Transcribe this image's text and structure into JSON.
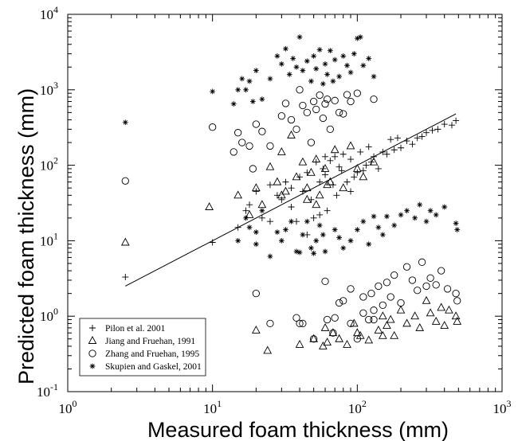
{
  "chart_data": {
    "type": "scatter",
    "title": "",
    "xlabel": "Measured foam thickness (mm)",
    "ylabel": "Predicted foam thickness (mm)",
    "xscale": "log",
    "yscale": "log",
    "xlim": [
      1,
      1000
    ],
    "ylim": [
      0.1,
      10000
    ],
    "x_ticks": [
      {
        "base": "10",
        "exp": "0"
      },
      {
        "base": "10",
        "exp": "1"
      },
      {
        "base": "10",
        "exp": "2"
      },
      {
        "base": "10",
        "exp": "3"
      }
    ],
    "y_ticks": [
      {
        "base": "10",
        "exp": "-1"
      },
      {
        "base": "10",
        "exp": "0"
      },
      {
        "base": "10",
        "exp": "1"
      },
      {
        "base": "10",
        "exp": "2"
      },
      {
        "base": "10",
        "exp": "3"
      },
      {
        "base": "10",
        "exp": "4"
      }
    ],
    "grid": false,
    "legend_position": "bottom-left",
    "fit_line": {
      "x": [
        2.5,
        480
      ],
      "y": [
        2.5,
        480
      ]
    },
    "series": [
      {
        "name": "Pilon et al. 2001",
        "marker": "plus",
        "points": [
          [
            2.5,
            3.3
          ],
          [
            10,
            9.5
          ],
          [
            15,
            15
          ],
          [
            17,
            25
          ],
          [
            18,
            30
          ],
          [
            20,
            45
          ],
          [
            22,
            20
          ],
          [
            25,
            55
          ],
          [
            28,
            40
          ],
          [
            30,
            35
          ],
          [
            32,
            60
          ],
          [
            35,
            50
          ],
          [
            38,
            18
          ],
          [
            40,
            70
          ],
          [
            42,
            45
          ],
          [
            45,
            80
          ],
          [
            48,
            35
          ],
          [
            50,
            20
          ],
          [
            52,
            110
          ],
          [
            55,
            60
          ],
          [
            58,
            90
          ],
          [
            60,
            75
          ],
          [
            62,
            25
          ],
          [
            65,
            115
          ],
          [
            68,
            55
          ],
          [
            70,
            130
          ],
          [
            72,
            40
          ],
          [
            75,
            95
          ],
          [
            78,
            85
          ],
          [
            80,
            140
          ],
          [
            85,
            60
          ],
          [
            90,
            120
          ],
          [
            95,
            70
          ],
          [
            100,
            80
          ],
          [
            105,
            150
          ],
          [
            110,
            85
          ],
          [
            115,
            100
          ],
          [
            120,
            175
          ],
          [
            125,
            110
          ],
          [
            130,
            130
          ],
          [
            140,
            90
          ],
          [
            150,
            150
          ],
          [
            160,
            140
          ],
          [
            170,
            220
          ],
          [
            180,
            160
          ],
          [
            190,
            230
          ],
          [
            200,
            170
          ],
          [
            220,
            210
          ],
          [
            240,
            190
          ],
          [
            260,
            230
          ],
          [
            280,
            240
          ],
          [
            300,
            270
          ],
          [
            330,
            290
          ],
          [
            360,
            300
          ],
          [
            400,
            350
          ],
          [
            450,
            340
          ],
          [
            480,
            390
          ],
          [
            25,
            18
          ],
          [
            45,
            12
          ],
          [
            35,
            28
          ],
          [
            55,
            22
          ],
          [
            60,
            130
          ],
          [
            90,
            45
          ]
        ]
      },
      {
        "name": "Jiang and Fruehan, 1991",
        "marker": "triangle",
        "points": [
          [
            2.5,
            9.5
          ],
          [
            9.5,
            28
          ],
          [
            15,
            40
          ],
          [
            18,
            22
          ],
          [
            20,
            50
          ],
          [
            20,
            0.65
          ],
          [
            22,
            30
          ],
          [
            24,
            0.35
          ],
          [
            25,
            95
          ],
          [
            28,
            60
          ],
          [
            30,
            150
          ],
          [
            32,
            45
          ],
          [
            35,
            250
          ],
          [
            38,
            70
          ],
          [
            40,
            0.42
          ],
          [
            42,
            110
          ],
          [
            45,
            35
          ],
          [
            48,
            80
          ],
          [
            50,
            0.5
          ],
          [
            52,
            120
          ],
          [
            55,
            40
          ],
          [
            58,
            0.4
          ],
          [
            60,
            90
          ],
          [
            62,
            0.45
          ],
          [
            65,
            60
          ],
          [
            68,
            0.6
          ],
          [
            70,
            160
          ],
          [
            75,
            0.5
          ],
          [
            80,
            50
          ],
          [
            85,
            0.42
          ],
          [
            90,
            180
          ],
          [
            95,
            0.8
          ],
          [
            100,
            90
          ],
          [
            105,
            0.55
          ],
          [
            110,
            70
          ],
          [
            120,
            0.48
          ],
          [
            130,
            110
          ],
          [
            140,
            0.65
          ],
          [
            150,
            1.0
          ],
          [
            160,
            0.75
          ],
          [
            170,
            0.9
          ],
          [
            180,
            0.55
          ],
          [
            200,
            1.2
          ],
          [
            220,
            0.8
          ],
          [
            250,
            1.0
          ],
          [
            270,
            0.7
          ],
          [
            300,
            1.6
          ],
          [
            320,
            1.1
          ],
          [
            350,
            0.85
          ],
          [
            380,
            1.3
          ],
          [
            400,
            0.75
          ],
          [
            430,
            1.2
          ],
          [
            480,
            1.0
          ],
          [
            490,
            0.85
          ],
          [
            30,
            40
          ],
          [
            45,
            50
          ],
          [
            62,
            55
          ],
          [
            52,
            30
          ],
          [
            60,
            0.7
          ],
          [
            100,
            0.6
          ],
          [
            150,
            0.55
          ]
        ]
      },
      {
        "name": "Zhang and Fruehan, 1995",
        "marker": "circle",
        "points": [
          [
            2.5,
            62
          ],
          [
            10,
            320
          ],
          [
            14,
            150
          ],
          [
            15,
            270
          ],
          [
            16,
            200
          ],
          [
            18,
            180
          ],
          [
            19,
            90
          ],
          [
            20,
            2.0
          ],
          [
            20,
            350
          ],
          [
            22,
            280
          ],
          [
            25,
            180
          ],
          [
            30,
            450
          ],
          [
            32,
            660
          ],
          [
            35,
            400
          ],
          [
            38,
            300
          ],
          [
            40,
            1000
          ],
          [
            42,
            620
          ],
          [
            45,
            500
          ],
          [
            48,
            200
          ],
          [
            50,
            700
          ],
          [
            52,
            550
          ],
          [
            55,
            850
          ],
          [
            58,
            420
          ],
          [
            60,
            650
          ],
          [
            62,
            750
          ],
          [
            65,
            300
          ],
          [
            70,
            720
          ],
          [
            75,
            500
          ],
          [
            80,
            480
          ],
          [
            85,
            860
          ],
          [
            90,
            700
          ],
          [
            100,
            900
          ],
          [
            130,
            750
          ],
          [
            25,
            0.8
          ],
          [
            38,
            0.95
          ],
          [
            40,
            0.8
          ],
          [
            42,
            0.8
          ],
          [
            50,
            0.5
          ],
          [
            62,
            0.9
          ],
          [
            68,
            0.6
          ],
          [
            70,
            0.95
          ],
          [
            80,
            1.6
          ],
          [
            90,
            0.8
          ],
          [
            100,
            0.5
          ],
          [
            110,
            1.1
          ],
          [
            120,
            0.9
          ],
          [
            130,
            1.2
          ],
          [
            140,
            2.5
          ],
          [
            150,
            1.4
          ],
          [
            160,
            2.8
          ],
          [
            170,
            1.8
          ],
          [
            180,
            3.5
          ],
          [
            200,
            1.5
          ],
          [
            220,
            4.5
          ],
          [
            240,
            3.0
          ],
          [
            260,
            2.2
          ],
          [
            280,
            5.2
          ],
          [
            300,
            2.5
          ],
          [
            320,
            3.2
          ],
          [
            350,
            2.6
          ],
          [
            380,
            4.0
          ],
          [
            420,
            2.3
          ],
          [
            480,
            2.0
          ],
          [
            490,
            1.6
          ],
          [
            60,
            2.9
          ],
          [
            75,
            1.5
          ],
          [
            90,
            2.3
          ],
          [
            110,
            1.8
          ],
          [
            125,
            2.0
          ],
          [
            130,
            0.9
          ]
        ]
      },
      {
        "name": "Skupien and Gaskel, 2001",
        "marker": "asterisk",
        "points": [
          [
            2.5,
            370
          ],
          [
            10,
            950
          ],
          [
            14,
            650
          ],
          [
            15,
            1000
          ],
          [
            16,
            1400
          ],
          [
            17,
            1000
          ],
          [
            18,
            1300
          ],
          [
            19,
            700
          ],
          [
            20,
            1800
          ],
          [
            22,
            750
          ],
          [
            25,
            1400
          ],
          [
            28,
            2800
          ],
          [
            30,
            2200
          ],
          [
            32,
            3500
          ],
          [
            34,
            1600
          ],
          [
            36,
            2600
          ],
          [
            38,
            2000
          ],
          [
            40,
            5000
          ],
          [
            42,
            1800
          ],
          [
            45,
            2400
          ],
          [
            48,
            1300
          ],
          [
            50,
            2800
          ],
          [
            52,
            1900
          ],
          [
            55,
            3400
          ],
          [
            58,
            1200
          ],
          [
            60,
            2200
          ],
          [
            62,
            1600
          ],
          [
            65,
            3300
          ],
          [
            68,
            1300
          ],
          [
            70,
            2500
          ],
          [
            75,
            1500
          ],
          [
            80,
            2800
          ],
          [
            85,
            2100
          ],
          [
            90,
            1700
          ],
          [
            95,
            3000
          ],
          [
            100,
            4800
          ],
          [
            105,
            5000
          ],
          [
            110,
            2100
          ],
          [
            120,
            2600
          ],
          [
            130,
            1500
          ],
          [
            15,
            10
          ],
          [
            17,
            20
          ],
          [
            18,
            15
          ],
          [
            20,
            13
          ],
          [
            20,
            9
          ],
          [
            22,
            25
          ],
          [
            25,
            6.2
          ],
          [
            28,
            13
          ],
          [
            30,
            10
          ],
          [
            32,
            14
          ],
          [
            35,
            18
          ],
          [
            38,
            7.2
          ],
          [
            40,
            7
          ],
          [
            42,
            12
          ],
          [
            45,
            18
          ],
          [
            48,
            8
          ],
          [
            50,
            6.8
          ],
          [
            52,
            10
          ],
          [
            55,
            16
          ],
          [
            58,
            12
          ],
          [
            60,
            7.2
          ],
          [
            70,
            14
          ],
          [
            75,
            11
          ],
          [
            80,
            8
          ],
          [
            90,
            10
          ],
          [
            100,
            14
          ],
          [
            110,
            18
          ],
          [
            120,
            9
          ],
          [
            130,
            21
          ],
          [
            140,
            15
          ],
          [
            150,
            12
          ],
          [
            160,
            21
          ],
          [
            180,
            16
          ],
          [
            200,
            22
          ],
          [
            220,
            25
          ],
          [
            250,
            20
          ],
          [
            270,
            30
          ],
          [
            300,
            18
          ],
          [
            320,
            25
          ],
          [
            350,
            22
          ],
          [
            400,
            28
          ],
          [
            480,
            17
          ],
          [
            490,
            14
          ]
        ]
      }
    ]
  }
}
